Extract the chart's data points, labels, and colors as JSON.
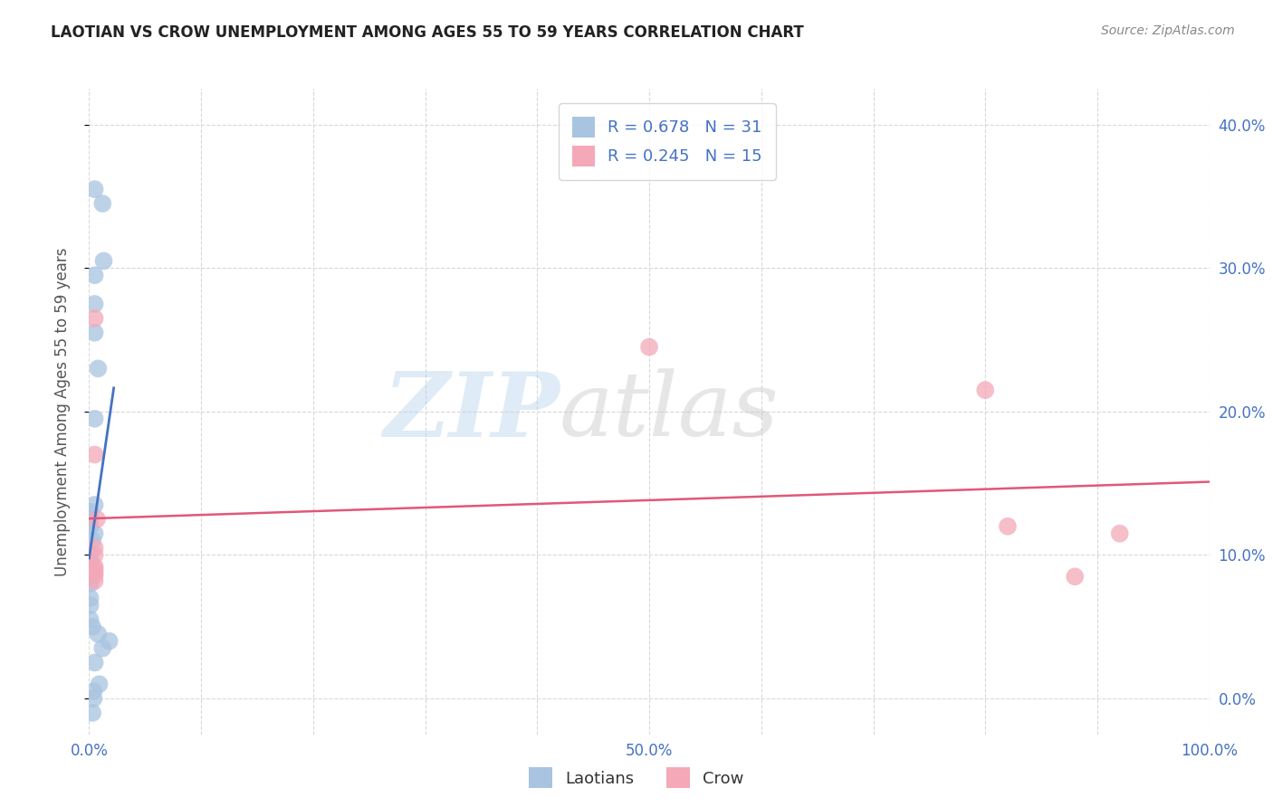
{
  "title": "LAOTIAN VS CROW UNEMPLOYMENT AMONG AGES 55 TO 59 YEARS CORRELATION CHART",
  "source": "Source: ZipAtlas.com",
  "ylabel": "Unemployment Among Ages 55 to 59 years",
  "xlim": [
    0.0,
    1.0
  ],
  "ylim": [
    -0.025,
    0.425
  ],
  "yticks": [
    0.0,
    0.1,
    0.2,
    0.3,
    0.4
  ],
  "yticklabels_right": [
    "0.0%",
    "10.0%",
    "20.0%",
    "30.0%",
    "40.0%"
  ],
  "xtick_positions": [
    0.0,
    0.5,
    1.0
  ],
  "xticklabels": [
    "0.0%",
    "50.0%",
    "100.0%"
  ],
  "laotian_x": [
    0.005,
    0.012,
    0.013,
    0.005,
    0.005,
    0.005,
    0.008,
    0.005,
    0.005,
    0.001,
    0.001,
    0.001,
    0.005,
    0.003,
    0.001,
    0.001,
    0.001,
    0.001,
    0.001,
    0.001,
    0.001,
    0.001,
    0.003,
    0.008,
    0.012,
    0.018,
    0.005,
    0.009,
    0.004,
    0.004,
    0.003
  ],
  "laotian_y": [
    0.355,
    0.345,
    0.305,
    0.295,
    0.275,
    0.255,
    0.23,
    0.195,
    0.135,
    0.13,
    0.125,
    0.12,
    0.115,
    0.11,
    0.1,
    0.095,
    0.09,
    0.085,
    0.08,
    0.07,
    0.065,
    0.055,
    0.05,
    0.045,
    0.035,
    0.04,
    0.025,
    0.01,
    0.005,
    0.0,
    -0.01
  ],
  "crow_x": [
    0.005,
    0.005,
    0.007,
    0.005,
    0.005,
    0.005,
    0.5,
    0.8,
    0.82,
    0.88,
    0.92,
    0.005,
    0.005,
    0.005,
    0.005
  ],
  "crow_y": [
    0.265,
    0.17,
    0.125,
    0.105,
    0.1,
    0.09,
    0.245,
    0.215,
    0.12,
    0.085,
    0.115,
    0.092,
    0.088,
    0.082,
    0.086
  ],
  "laotian_color": "#a8c4e0",
  "crow_color": "#f4a8b8",
  "laotian_line_color": "#4472c4",
  "crow_line_color": "#e05878",
  "laotian_R": 0.678,
  "laotian_N": 31,
  "crow_R": 0.245,
  "crow_N": 15,
  "background_color": "#ffffff",
  "grid_color": "#d8d8d8"
}
